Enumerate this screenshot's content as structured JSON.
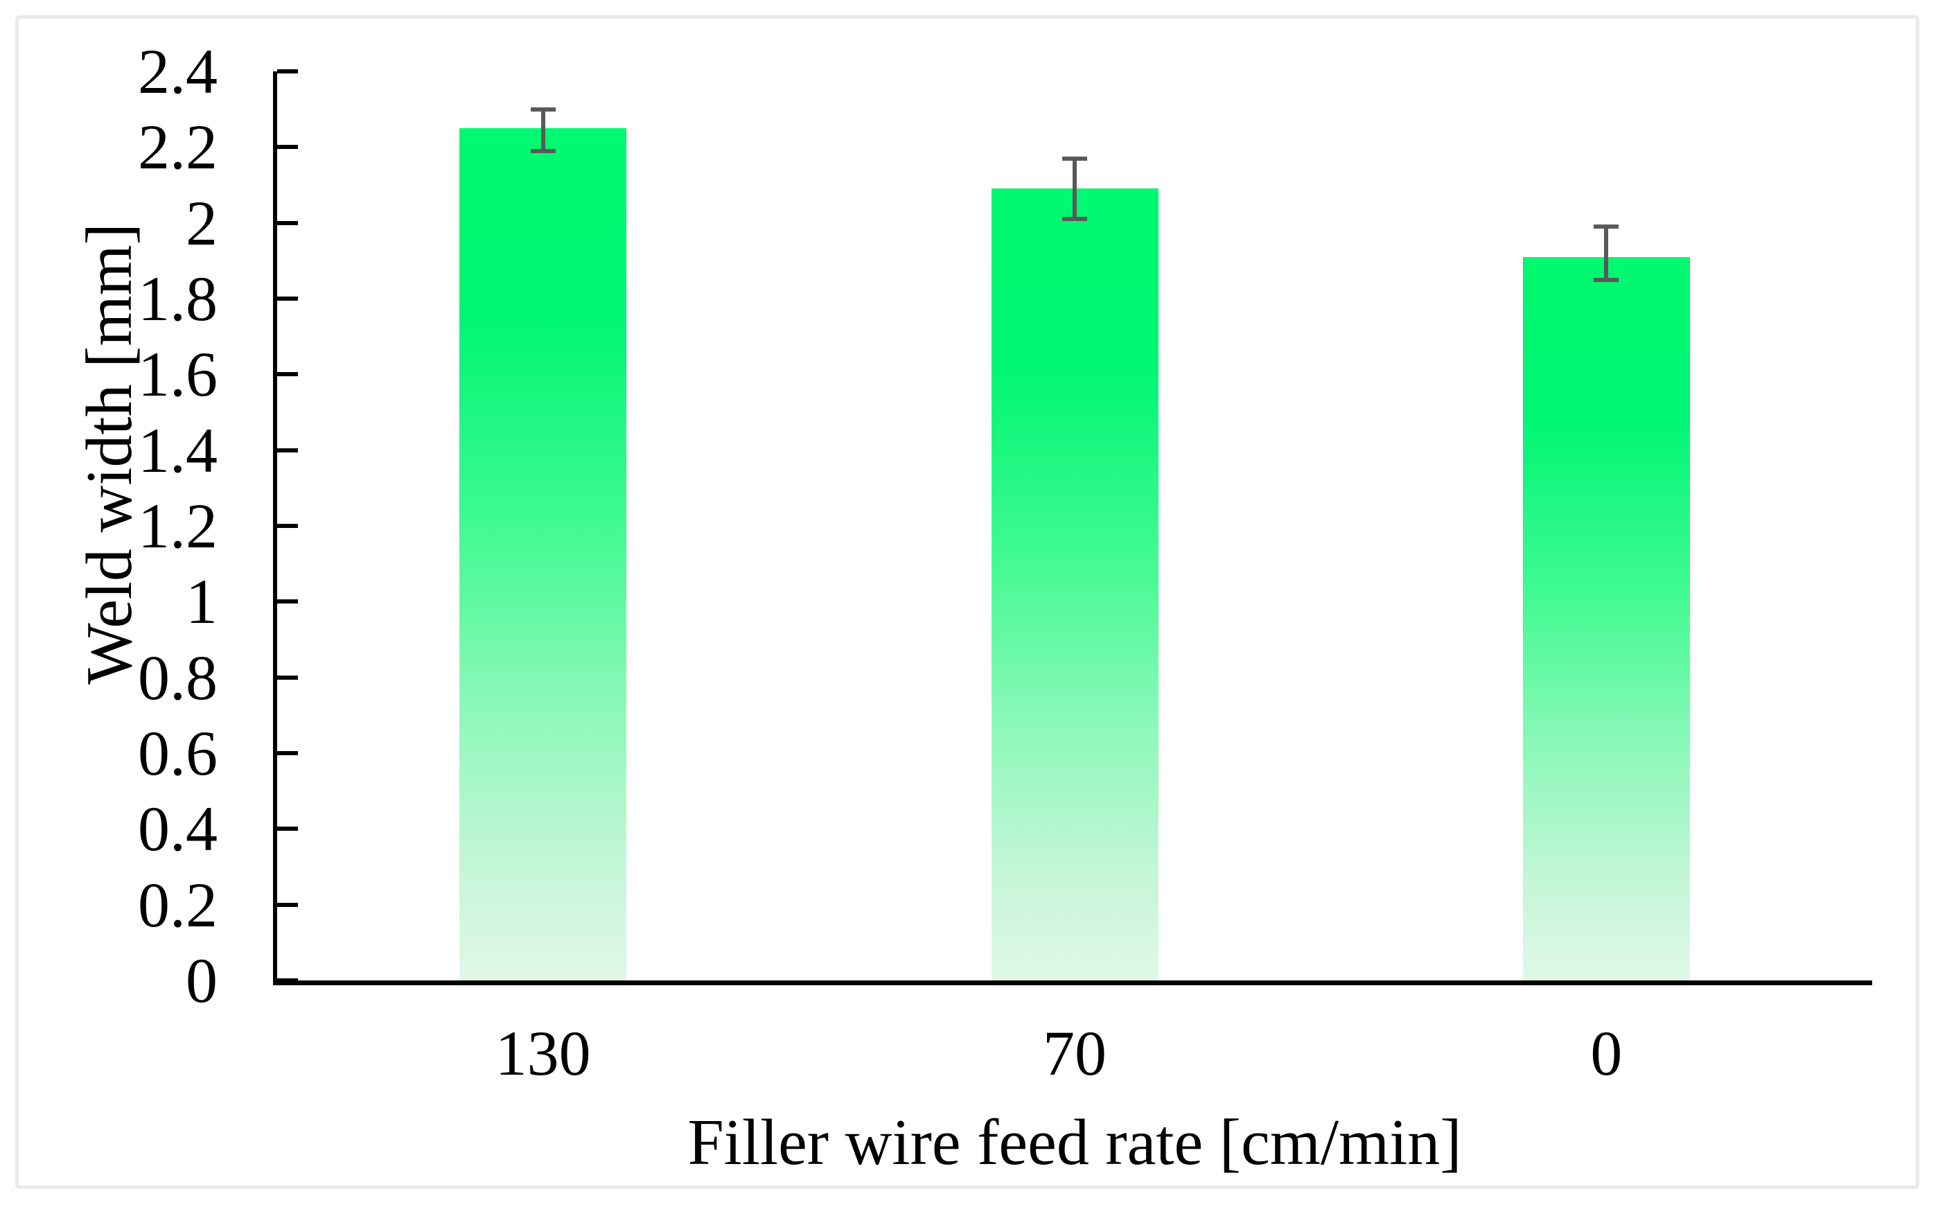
{
  "chart_data": {
    "type": "bar",
    "title": "",
    "categories": [
      "130",
      "70",
      "0"
    ],
    "values": [
      2.25,
      2.09,
      1.91
    ],
    "error_low": [
      2.19,
      2.01,
      1.85
    ],
    "error_high": [
      2.3,
      2.17,
      1.99
    ],
    "xlabel": "Filler wire feed rate [cm/min]",
    "ylabel": "Weld width [mm]",
    "ylim": [
      0,
      2.4
    ],
    "ytick_step": 0.2,
    "ytick_labels": [
      "0",
      "0.2",
      "0.4",
      "0.6",
      "0.8",
      "1",
      "1.2",
      "1.4",
      "1.6",
      "1.8",
      "2",
      "2.2",
      "2.4"
    ],
    "grid": false,
    "legend": null,
    "ticks_direction": "inside",
    "colors": {
      "bar_top": "#00f96f",
      "bar_bottom": "#e0f8e8",
      "error_bar": "#595959",
      "axis": "#000000",
      "text": "#000000",
      "figure_border": "#eaeaea"
    }
  }
}
